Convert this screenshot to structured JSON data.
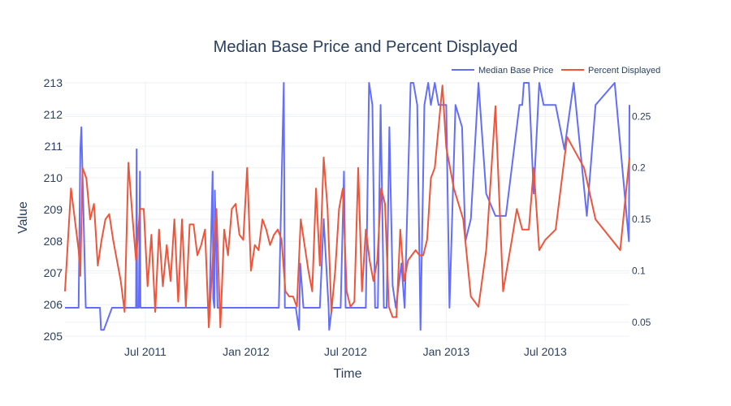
{
  "chart_data": {
    "type": "line",
    "title": "Median Base Price and Percent Displayed",
    "xlabel": "Time",
    "ylabel": "Value",
    "x_ticks": [
      "Jul 2011",
      "Jan 2012",
      "Jul 2012",
      "Jan 2013",
      "Jul 2013"
    ],
    "x_tick_dates": [
      "2011-07-01",
      "2012-01-01",
      "2012-07-01",
      "2013-01-01",
      "2013-07-01"
    ],
    "xlim": [
      "2011-02-04",
      "2013-12-02"
    ],
    "y_ticks": [
      205,
      206,
      207,
      208,
      209,
      210,
      211,
      212,
      213
    ],
    "ylim": [
      204.85,
      213.05
    ],
    "y2_ticks": [
      "0.05",
      "0.1",
      "0.15",
      "0.2",
      "0.25"
    ],
    "y2_values": [
      0.05,
      0.1,
      0.15,
      0.2,
      0.25
    ],
    "y2lim": [
      0.0317,
      0.2842
    ],
    "grid": true,
    "legend_position": "top-right",
    "colors": {
      "series1": "#636efa",
      "series2": "#ef553b",
      "grid": "#eef1f6",
      "text": "#2a3f5f"
    },
    "series": [
      {
        "name": "Median Base Price",
        "axis": "y",
        "x": [
          "2011-02-04",
          "2011-03-01",
          "2011-03-04",
          "2011-03-06",
          "2011-03-14",
          "2011-04-01",
          "2011-04-09",
          "2011-04-11",
          "2011-04-16",
          "2011-05-01",
          "2011-06-01",
          "2011-06-14",
          "2011-06-15",
          "2011-06-16",
          "2011-06-19",
          "2011-06-21",
          "2011-06-22",
          "2011-06-24",
          "2011-07-01",
          "2011-08-01",
          "2011-09-01",
          "2011-10-01",
          "2011-10-26",
          "2011-11-01",
          "2011-11-02",
          "2011-11-04",
          "2011-11-05",
          "2011-11-10",
          "2011-12-01",
          "2012-01-01",
          "2012-02-01",
          "2012-03-01",
          "2012-03-10",
          "2012-03-12",
          "2012-03-15",
          "2012-04-01",
          "2012-04-07",
          "2012-04-09",
          "2012-04-15",
          "2012-04-23",
          "2012-05-01",
          "2012-05-08",
          "2012-05-15",
          "2012-05-22",
          "2012-05-31",
          "2012-06-01",
          "2012-06-06",
          "2012-06-10",
          "2012-06-15",
          "2012-06-22",
          "2012-06-28",
          "2012-07-01",
          "2012-07-12",
          "2012-07-24",
          "2012-08-01",
          "2012-08-07",
          "2012-08-13",
          "2012-08-19",
          "2012-08-24",
          "2012-08-29",
          "2012-09-03",
          "2012-09-09",
          "2012-09-14",
          "2012-09-19",
          "2012-09-25",
          "2012-10-01",
          "2012-10-11",
          "2012-10-17",
          "2012-10-28",
          "2012-11-02",
          "2012-11-09",
          "2012-11-15",
          "2012-11-22",
          "2012-11-29",
          "2012-12-04",
          "2012-12-11",
          "2012-12-18",
          "2012-12-25",
          "2013-01-01",
          "2013-01-07",
          "2013-01-18",
          "2013-01-30",
          "2013-02-05",
          "2013-02-15",
          "2013-03-01",
          "2013-03-15",
          "2013-04-01",
          "2013-04-20",
          "2013-05-15",
          "2013-05-20",
          "2013-05-23",
          "2013-06-01",
          "2013-06-10",
          "2013-06-20",
          "2013-06-28",
          "2013-07-10",
          "2013-07-20",
          "2013-08-05",
          "2013-08-22",
          "2013-09-15",
          "2013-10-01",
          "2013-11-05",
          "2013-12-01",
          "2013-12-02"
        ],
        "values": [
          205.9,
          205.9,
          210.9,
          211.6,
          205.9,
          205.9,
          205.9,
          205.2,
          205.2,
          205.9,
          205.9,
          205.9,
          210.9,
          205.9,
          205.9,
          210.2,
          205.9,
          205.9,
          205.9,
          205.9,
          205.9,
          205.9,
          205.9,
          210.2,
          206.2,
          205.9,
          209.6,
          205.9,
          205.9,
          205.9,
          205.9,
          205.9,
          213.0,
          205.9,
          205.9,
          205.9,
          205.2,
          207.3,
          205.9,
          205.9,
          205.9,
          205.9,
          205.9,
          208.7,
          205.9,
          205.2,
          205.9,
          205.9,
          205.9,
          205.9,
          210.2,
          205.9,
          205.9,
          205.9,
          205.9,
          205.9,
          213.0,
          212.3,
          205.9,
          205.9,
          212.3,
          205.9,
          205.9,
          211.6,
          206.6,
          205.9,
          207.3,
          205.9,
          213.0,
          213.0,
          212.3,
          205.2,
          212.3,
          213.0,
          212.3,
          213.0,
          212.3,
          212.3,
          212.3,
          205.9,
          212.3,
          211.6,
          208.0,
          208.7,
          213.0,
          209.5,
          208.8,
          208.8,
          212.3,
          212.3,
          213.0,
          213.0,
          209.5,
          213.0,
          212.3,
          212.3,
          212.3,
          210.9,
          213.0,
          208.8,
          212.3,
          213.0,
          208.0,
          212.3
        ]
      },
      {
        "name": "Percent Displayed",
        "axis": "y2",
        "x": [
          "2011-02-04",
          "2011-02-15",
          "2011-03-01",
          "2011-03-04",
          "2011-03-08",
          "2011-03-15",
          "2011-03-22",
          "2011-03-29",
          "2011-04-05",
          "2011-04-12",
          "2011-04-19",
          "2011-04-26",
          "2011-05-03",
          "2011-05-10",
          "2011-05-17",
          "2011-05-24",
          "2011-05-31",
          "2011-06-07",
          "2011-06-14",
          "2011-06-21",
          "2011-06-28",
          "2011-07-05",
          "2011-07-12",
          "2011-07-19",
          "2011-07-26",
          "2011-08-02",
          "2011-08-09",
          "2011-08-16",
          "2011-08-23",
          "2011-08-30",
          "2011-09-06",
          "2011-09-13",
          "2011-09-20",
          "2011-09-27",
          "2011-10-04",
          "2011-10-11",
          "2011-10-18",
          "2011-10-25",
          "2011-11-01",
          "2011-11-08",
          "2011-11-15",
          "2011-11-22",
          "2011-11-29",
          "2011-12-06",
          "2011-12-13",
          "2011-12-20",
          "2011-12-27",
          "2012-01-03",
          "2012-01-10",
          "2012-01-17",
          "2012-01-24",
          "2012-01-31",
          "2012-02-07",
          "2012-02-14",
          "2012-02-21",
          "2012-02-28",
          "2012-03-06",
          "2012-03-13",
          "2012-03-20",
          "2012-03-27",
          "2012-04-03",
          "2012-04-10",
          "2012-04-17",
          "2012-04-24",
          "2012-05-01",
          "2012-05-08",
          "2012-05-15",
          "2012-05-22",
          "2012-05-29",
          "2012-06-05",
          "2012-06-12",
          "2012-06-19",
          "2012-06-26",
          "2012-07-03",
          "2012-07-10",
          "2012-07-17",
          "2012-07-24",
          "2012-07-31",
          "2012-08-07",
          "2012-08-14",
          "2012-08-21",
          "2012-08-28",
          "2012-09-04",
          "2012-09-11",
          "2012-09-18",
          "2012-09-25",
          "2012-10-02",
          "2012-10-09",
          "2012-10-16",
          "2012-10-23",
          "2012-10-30",
          "2012-11-06",
          "2012-11-13",
          "2012-11-20",
          "2012-11-27",
          "2012-12-04",
          "2012-12-11",
          "2012-12-18",
          "2012-12-25",
          "2013-01-01",
          "2013-01-15",
          "2013-02-01",
          "2013-02-15",
          "2013-03-01",
          "2013-03-15",
          "2013-04-01",
          "2013-04-15",
          "2013-05-01",
          "2013-05-10",
          "2013-05-20",
          "2013-06-01",
          "2013-06-10",
          "2013-06-20",
          "2013-07-01",
          "2013-07-20",
          "2013-08-10",
          "2013-09-10",
          "2013-10-01",
          "2013-11-15",
          "2013-12-02"
        ],
        "values": [
          0.08,
          0.18,
          0.12,
          0.095,
          0.2,
          0.19,
          0.15,
          0.165,
          0.105,
          0.13,
          0.15,
          0.155,
          0.13,
          0.11,
          0.09,
          0.06,
          0.205,
          0.155,
          0.11,
          0.16,
          0.16,
          0.085,
          0.135,
          0.06,
          0.14,
          0.085,
          0.125,
          0.09,
          0.15,
          0.07,
          0.15,
          0.065,
          0.145,
          0.145,
          0.115,
          0.125,
          0.14,
          0.045,
          0.11,
          0.16,
          0.045,
          0.14,
          0.115,
          0.16,
          0.165,
          0.135,
          0.13,
          0.2,
          0.1,
          0.125,
          0.12,
          0.15,
          0.14,
          0.125,
          0.135,
          0.14,
          0.13,
          0.08,
          0.075,
          0.075,
          0.065,
          0.15,
          0.125,
          0.1,
          0.08,
          0.18,
          0.105,
          0.21,
          0.16,
          0.06,
          0.1,
          0.16,
          0.18,
          0.08,
          0.065,
          0.07,
          0.2,
          0.08,
          0.14,
          0.11,
          0.09,
          0.11,
          0.18,
          0.165,
          0.065,
          0.055,
          0.055,
          0.14,
          0.09,
          0.11,
          0.115,
          0.12,
          0.115,
          0.115,
          0.13,
          0.19,
          0.2,
          0.24,
          0.28,
          0.22,
          0.18,
          0.15,
          0.075,
          0.065,
          0.12,
          0.26,
          0.08,
          0.13,
          0.16,
          0.14,
          0.14,
          0.2,
          0.12,
          0.13,
          0.14,
          0.23,
          0.2,
          0.15,
          0.12,
          0.21
        ]
      }
    ]
  }
}
